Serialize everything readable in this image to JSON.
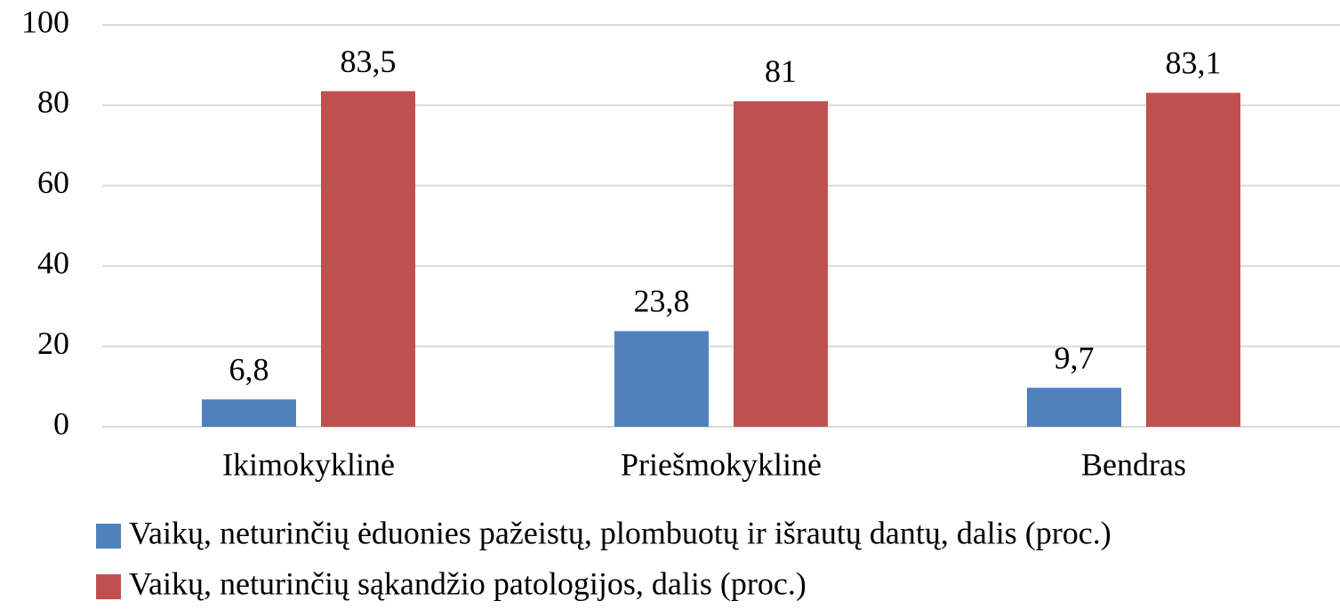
{
  "chart_data": {
    "type": "bar",
    "categories": [
      "Ikimokyklinė",
      "Priešmokyklinė",
      "Bendras"
    ],
    "series": [
      {
        "name": "Vaikų, neturinčių ėduonies pažeistų, plombuotų ir išrautų dantų, dalis (proc.)",
        "color": "#4f81bd",
        "values": [
          6.8,
          23.8,
          9.7
        ],
        "value_labels": [
          "6,8",
          "23,8",
          "9,7"
        ]
      },
      {
        "name": "Vaikų, neturinčių sąkandžio patologijos, dalis (proc.)",
        "color": "#c0504d",
        "values": [
          83.5,
          81,
          83.1
        ],
        "value_labels": [
          "83,5",
          "81",
          "83,1"
        ]
      }
    ],
    "ylim": [
      0,
      100
    ],
    "yticks": [
      0,
      20,
      40,
      60,
      80,
      100
    ],
    "grid": true
  }
}
